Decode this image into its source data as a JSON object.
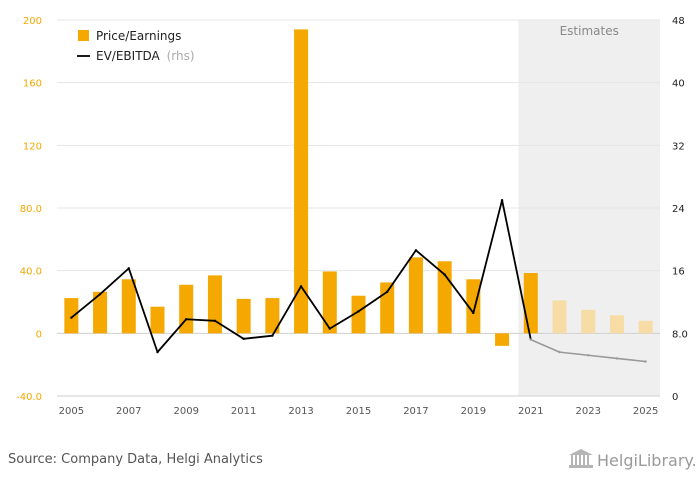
{
  "chart_data": {
    "type": "bar",
    "categories": [
      "2005",
      "2006",
      "2007",
      "2008",
      "2009",
      "2010",
      "2011",
      "2012",
      "2013",
      "2014",
      "2015",
      "2016",
      "2017",
      "2018",
      "2019",
      "2020",
      "2021",
      "2022",
      "2023",
      "2024",
      "2025"
    ],
    "xtick_labels": [
      "2005",
      "2007",
      "2009",
      "2011",
      "2013",
      "2015",
      "2017",
      "2019",
      "2021",
      "2023",
      "2025"
    ],
    "series": [
      {
        "name": "Price/Earnings",
        "axis": "left",
        "type": "bar",
        "values": [
          22.5,
          26.5,
          34.5,
          17.0,
          31.0,
          37.0,
          22.0,
          22.5,
          194.0,
          39.5,
          24.0,
          32.5,
          48.5,
          46.0,
          34.5,
          -8.0,
          38.5,
          21.0,
          15.0,
          11.5,
          8.0
        ]
      },
      {
        "name": "EV/EBITDA",
        "name_suffix": "(rhs)",
        "axis": "right",
        "type": "line",
        "values": [
          10.0,
          13.0,
          16.3,
          5.6,
          9.8,
          9.6,
          7.3,
          7.7,
          14.0,
          8.6,
          10.8,
          13.3,
          18.6,
          15.5,
          10.6,
          25.0,
          7.2,
          5.6,
          5.2,
          4.8,
          4.4
        ]
      }
    ],
    "estimate_start_index": 16,
    "estimate_label": "Estimates",
    "ylim_left": [
      -40,
      200
    ],
    "yticks_left": [
      "-40.0",
      "0",
      "40.0",
      "80.0",
      "120",
      "160",
      "200"
    ],
    "ylim_right": [
      0,
      48
    ],
    "yticks_right": [
      "0",
      "8.0",
      "16",
      "24",
      "32",
      "40",
      "48"
    ],
    "legend_position": "top-left",
    "grid": true
  },
  "colors": {
    "bar": "#f5a800",
    "bar_estimate": "#f7dca6",
    "line": "#000000",
    "line_estimate": "#999999",
    "estimate_band": "#efefef",
    "grid": "#e6e6e6"
  },
  "footer": {
    "source": "Source: Company Data, Helgi Analytics",
    "brand": "HelgiLibrary."
  }
}
